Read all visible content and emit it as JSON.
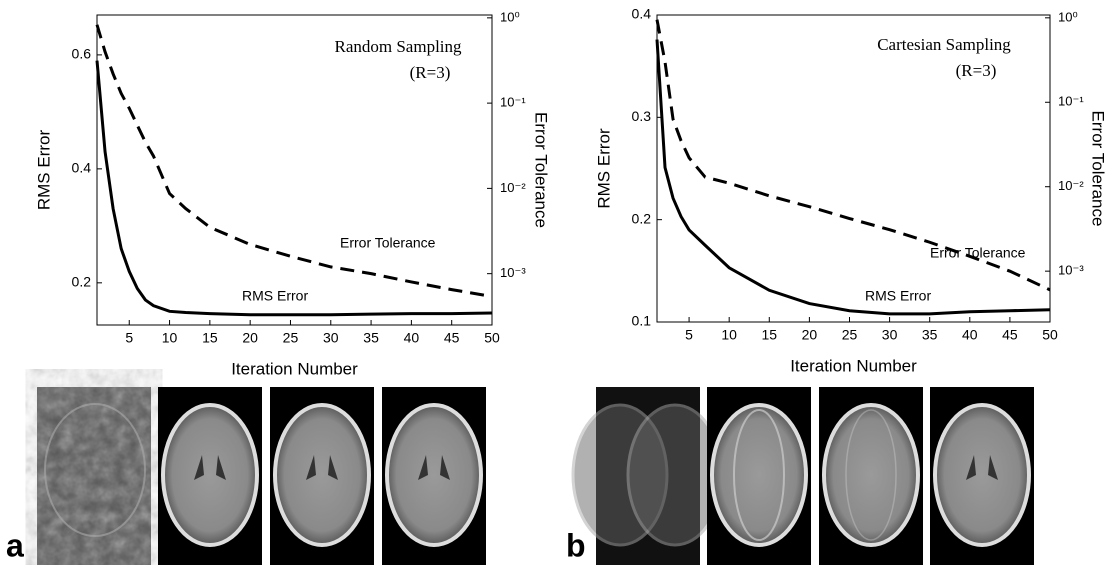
{
  "chart_data": [
    {
      "type": "line",
      "annotations": [
        "Random Sampling",
        "(R=3)"
      ],
      "xlabel": "Iteration Number",
      "ylabel": "RMS Error",
      "y2label": "Error Tolerance",
      "x": [
        1,
        2,
        3,
        4,
        5,
        6,
        7,
        8,
        10,
        12,
        15,
        20,
        25,
        30,
        35,
        40,
        45,
        50
      ],
      "xlim": [
        1,
        50
      ],
      "xticks": [
        5,
        10,
        15,
        20,
        25,
        30,
        35,
        40,
        45,
        50
      ],
      "ylim": [
        0.126,
        0.67
      ],
      "yticks": [
        0.2,
        0.4,
        0.6
      ],
      "y2lim": [
        0.00025,
        1.08
      ],
      "y2log": true,
      "y2ticks": [
        {
          "value": 1,
          "label": "10⁰"
        },
        {
          "value": 0.1,
          "label": "10⁻¹"
        },
        {
          "value": 0.01,
          "label": "10⁻²"
        },
        {
          "value": 0.001,
          "label": "10⁻³"
        }
      ],
      "series": [
        {
          "name": "RMS Error",
          "color": "#000000",
          "dashed": false,
          "values": [
            0.59,
            0.43,
            0.33,
            0.26,
            0.22,
            0.19,
            0.17,
            0.16,
            0.15,
            0.148,
            0.146,
            0.144,
            0.144,
            0.144,
            0.145,
            0.146,
            0.146,
            0.147
          ]
        },
        {
          "name": "Error Tolerance",
          "color": "#000000",
          "dashed": true,
          "axis": "y2",
          "values": [
            0.83,
            0.4,
            0.22,
            0.13,
            0.087,
            0.055,
            0.035,
            0.024,
            0.0087,
            0.0058,
            0.0035,
            0.0022,
            0.0016,
            0.0012,
            0.001,
            0.0008,
            0.00065,
            0.00054
          ]
        }
      ]
    },
    {
      "type": "line",
      "annotations": [
        "Cartesian Sampling",
        "(R=3)"
      ],
      "xlabel": "Iteration Number",
      "ylabel": "RMS Error",
      "y2label": "Error Tolerance",
      "x": [
        1,
        2,
        3,
        4,
        5,
        7,
        10,
        15,
        20,
        25,
        30,
        35,
        40,
        45,
        50
      ],
      "xlim": [
        1,
        50
      ],
      "xticks": [
        5,
        10,
        15,
        20,
        25,
        30,
        35,
        40,
        45,
        50
      ],
      "ylim": [
        0.1,
        0.4
      ],
      "yticks": [
        0.1,
        0.2,
        0.3,
        0.4
      ],
      "y2lim": [
        0.00025,
        1.08
      ],
      "y2log": true,
      "y2ticks": [
        {
          "value": 1,
          "label": "10⁰"
        },
        {
          "value": 0.1,
          "label": "10⁻¹"
        },
        {
          "value": 0.01,
          "label": "10⁻²"
        },
        {
          "value": 0.001,
          "label": "10⁻³"
        }
      ],
      "series": [
        {
          "name": "RMS Error",
          "color": "#000000",
          "dashed": false,
          "values": [
            0.376,
            0.251,
            0.221,
            0.203,
            0.19,
            0.175,
            0.153,
            0.131,
            0.118,
            0.111,
            0.108,
            0.108,
            0.11,
            0.111,
            0.112
          ]
        },
        {
          "name": "Error Tolerance",
          "color": "#000000",
          "dashed": true,
          "axis": "y2",
          "values": [
            0.95,
            0.3,
            0.063,
            0.035,
            0.022,
            0.013,
            0.011,
            0.0078,
            0.0058,
            0.0042,
            0.0031,
            0.0022,
            0.0015,
            0.001,
            0.0006
          ]
        }
      ]
    }
  ],
  "panel_labels": [
    "a",
    "b"
  ]
}
